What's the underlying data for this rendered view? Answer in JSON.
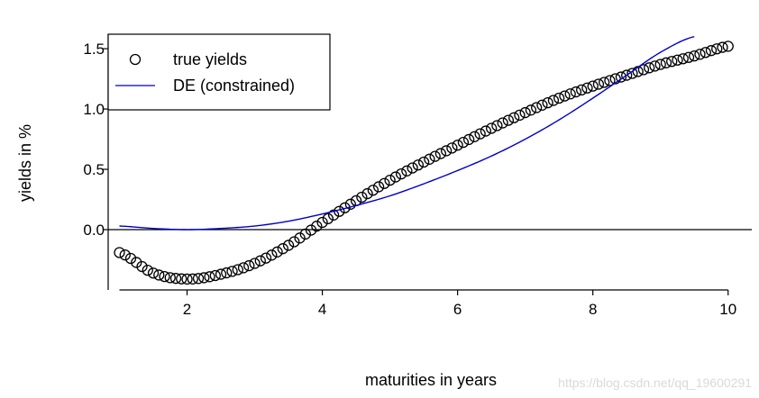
{
  "chart_data": {
    "type": "scatter",
    "title": "",
    "xlabel": "maturities in years",
    "ylabel": "yields in %",
    "xlim": [
      0.9,
      10.35
    ],
    "ylim": [
      -0.5,
      1.62
    ],
    "xticks": [
      2,
      4,
      6,
      8,
      10
    ],
    "xtick_labels": [
      "2",
      "4",
      "6",
      "8",
      "10"
    ],
    "yticks": [
      0.0,
      0.5,
      1.0,
      1.5
    ],
    "ytick_labels": [
      "0.0",
      "0.5",
      "1.0",
      "1.5"
    ],
    "grid": false,
    "legend_position": "top-left",
    "series": [
      {
        "name": "true yields",
        "marker": "open-circle",
        "color": "#000000",
        "x": [
          1.0,
          1.5,
          2.0,
          2.5,
          3.0,
          3.5,
          4.0,
          4.5,
          5.0,
          5.5,
          6.0,
          6.5,
          7.0,
          7.5,
          8.0,
          8.5,
          9.0,
          9.5,
          10.0
        ],
        "y": [
          -0.19,
          -0.36,
          -0.41,
          -0.37,
          -0.28,
          -0.13,
          0.06,
          0.24,
          0.41,
          0.56,
          0.7,
          0.84,
          0.97,
          1.09,
          1.19,
          1.28,
          1.37,
          1.44,
          1.52
        ]
      },
      {
        "name": "DE (constrained)",
        "marker": "line",
        "color": "#0000cc",
        "x": [
          1.0,
          1.5,
          2.0,
          2.5,
          3.0,
          3.5,
          4.0,
          4.5,
          5.0,
          5.5,
          6.0,
          6.5,
          7.0,
          7.5,
          8.0,
          8.5,
          9.0,
          9.5
        ],
        "y": [
          0.03,
          0.01,
          0.0,
          0.01,
          0.03,
          0.07,
          0.13,
          0.2,
          0.28,
          0.38,
          0.49,
          0.61,
          0.75,
          0.91,
          1.09,
          1.28,
          1.47,
          1.6
        ]
      }
    ]
  },
  "watermark": "https://blog.csdn.net/qq_19600291"
}
